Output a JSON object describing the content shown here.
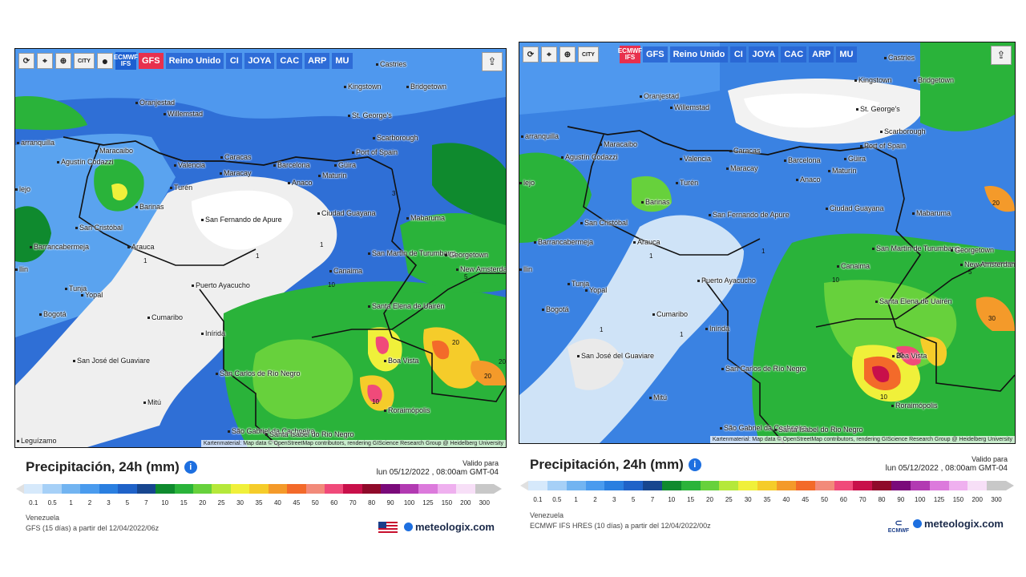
{
  "scale": {
    "ticks": [
      "0.1",
      "0.5",
      "1",
      "2",
      "3",
      "5",
      "7",
      "10",
      "15",
      "20",
      "25",
      "30",
      "35",
      "40",
      "45",
      "50",
      "60",
      "70",
      "80",
      "90",
      "100",
      "125",
      "150",
      "200",
      "300"
    ],
    "colors": [
      "#d6e9fb",
      "#a6d0f7",
      "#72b4f1",
      "#4a9bee",
      "#2a7fe0",
      "#1f62c8",
      "#17468f",
      "#0f8a2e",
      "#2ab33a",
      "#67d13c",
      "#b5e83a",
      "#f0f03a",
      "#f5cc2a",
      "#f49a2a",
      "#f36a2a",
      "#f28a7a",
      "#f04a7a",
      "#c8104a",
      "#8f0a2a",
      "#7a0a7a",
      "#b23ab2",
      "#dc7adc",
      "#efb0ef",
      "#f7dff7",
      "#c8c8c8"
    ]
  },
  "left": {
    "toolbar": {
      "refresh": "⟳",
      "locate": "⌖",
      "zoom": "⊕",
      "city": "CITY",
      "dot": "●",
      "models": [
        "ECMWF IFS",
        "GFS",
        "Reino Unido",
        "CI",
        "JOYA",
        "CAC",
        "ARP",
        "MU"
      ],
      "active_model": "GFS"
    },
    "credit": "Kartenmaterial: Map data © OpenStreetMap contributors, rendering GIScience Research Group @ Heidelberg University",
    "cities": [
      "Castries",
      "Kingstown",
      "Bridgetown",
      "Oranjestad",
      "Willemstad",
      "St. George's",
      "Scarborough",
      "Port of Spain",
      "arranquilla",
      "Maracaibo",
      "Caracas",
      "Valencia",
      "Maracay",
      "Barcelona",
      "Güira",
      "Maturín",
      "Agustín Codazzi",
      "Anaco",
      "Turén",
      "Barinas",
      "Ciudad Guayana",
      "San Fernando de Apure",
      "Mabaruma",
      "San Cristóbal",
      "Arauca",
      "Barrancabermeja",
      "San Martín de Turumbang",
      "Georgetown",
      "New Amsterdam",
      "Canaima",
      "Puerto Ayacucho",
      "Tunja",
      "Yopal",
      "Santa Elena de Uairén",
      "Bogotá",
      "Cumaribo",
      "Inírida",
      "Boa Vista",
      "San José del Guaviare",
      "San Carlos de Río Negro",
      "Mitú",
      "Roraimópolis",
      "São Gabriel da Cachoeira",
      "Santa Isabel do Rio Negro",
      "lejo",
      "llin",
      "Leguízamo"
    ],
    "contours": [
      "1",
      "1",
      "1",
      "3",
      "5",
      "10",
      "10",
      "20",
      "20",
      "20"
    ],
    "title": "Precipitación, 24h (mm)",
    "info": "i",
    "valid_label": "Valido para",
    "valid_date": "lun 05/12/2022 , 08:00am GMT-04",
    "region": "Venezuela",
    "model_line": "GFS (15 días) a partir del 12/04/2022/06z",
    "brand": "meteologix.com"
  },
  "right": {
    "toolbar": {
      "refresh": "⟳",
      "locate": "⌖",
      "zoom": "⊕",
      "city": "CITY",
      "models": [
        "ECMWF IFS",
        "GFS",
        "Reino Unido",
        "CI",
        "JOYA",
        "CAC",
        "ARP",
        "MU"
      ],
      "active_model": "ECMWF IFS"
    },
    "credit": "Kartenmaterial: Map data © OpenStreetMap contributors, rendering GIScience Research Group @ Heidelberg University",
    "cities": [
      "Castries",
      "Kingstown",
      "Bridgetown",
      "Oranjestad",
      "Willemstad",
      "St. George's",
      "Scarborough",
      "Port of Spain",
      "arranquilla",
      "Maracaibo",
      "Caracas",
      "Valencia",
      "Maracay",
      "Barcelona",
      "Güira",
      "Maturín",
      "Agustín Codazzi",
      "Anaco",
      "Turén",
      "Barinas",
      "Ciudad Guayana",
      "San Fernando de Apure",
      "Mabaruma",
      "San Cristóbal",
      "Arauca",
      "Barrancabermeja",
      "San Martín de Turumbang",
      "Georgetown",
      "New Amsterdam",
      "Canaima",
      "Puerto Ayacucho",
      "Tunja",
      "Yopal",
      "Santa Elena de Uairén",
      "Bogotá",
      "Cumaribo",
      "Inírida",
      "Boa Vista",
      "San José del Guaviare",
      "San Carlos de Río Negro",
      "Mitú",
      "Roraimópolis",
      "São Gabriel da Cachoeira",
      "Santa Isabel do Rio Negro",
      "lejo",
      "llin"
    ],
    "contours": [
      "1",
      "1",
      "1",
      "1",
      "5",
      "10",
      "10",
      "20",
      "20",
      "30"
    ],
    "title": "Precipitación, 24h (mm)",
    "info": "i",
    "valid_label": "Valido para",
    "valid_date": "lun 05/12/2022 , 08:00am GMT-04",
    "region": "Venezuela",
    "model_line": "ECMWF IFS HRES (10 días) a partir del 12/04/2022/00z",
    "ecmwf_label": "ECMWF",
    "brand": "meteologix.com"
  }
}
